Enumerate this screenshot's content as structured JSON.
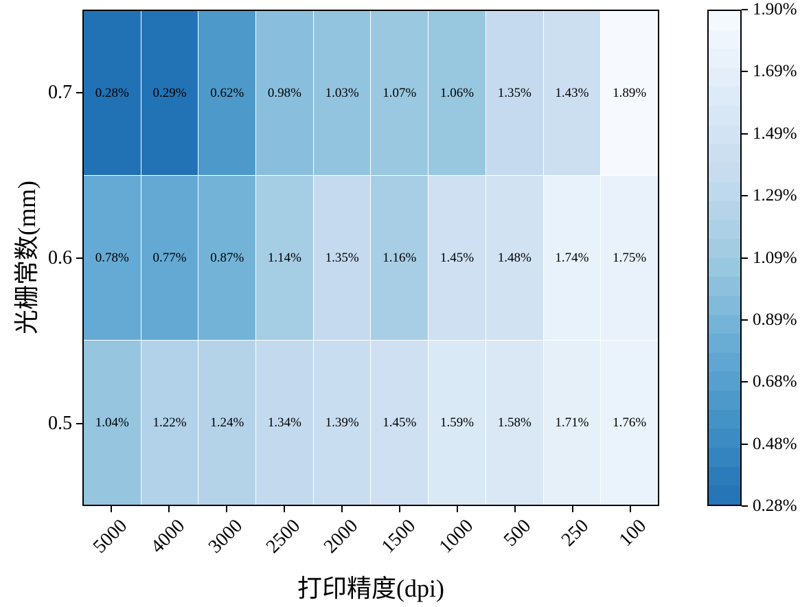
{
  "chart_data": {
    "type": "heatmap",
    "title": "",
    "xlabel": "打印精度(dpi)",
    "ylabel": "光栅常数(mm)",
    "x_categories": [
      "5000",
      "4000",
      "3000",
      "2500",
      "2000",
      "1500",
      "1000",
      "500",
      "250",
      "100"
    ],
    "y_categories": [
      "0.7",
      "0.6",
      "0.5"
    ],
    "values": [
      [
        0.28,
        0.29,
        0.62,
        0.98,
        1.03,
        1.07,
        1.06,
        1.35,
        1.43,
        1.89
      ],
      [
        0.78,
        0.77,
        0.87,
        1.14,
        1.35,
        1.16,
        1.45,
        1.48,
        1.74,
        1.75
      ],
      [
        1.04,
        1.22,
        1.24,
        1.34,
        1.39,
        1.45,
        1.59,
        1.58,
        1.71,
        1.76
      ]
    ],
    "cell_labels": [
      [
        "0.28%",
        "0.29%",
        "0.62%",
        "0.98%",
        "1.03%",
        "1.07%",
        "1.06%",
        "1.35%",
        "1.43%",
        "1.89%"
      ],
      [
        "0.78%",
        "0.77%",
        "0.87%",
        "1.14%",
        "1.35%",
        "1.16%",
        "1.45%",
        "1.48%",
        "1.74%",
        "1.75%"
      ],
      [
        "1.04%",
        "1.22%",
        "1.24%",
        "1.34%",
        "1.39%",
        "1.45%",
        "1.59%",
        "1.58%",
        "1.71%",
        "1.76%"
      ]
    ],
    "vmin": 0.28,
    "vmax": 1.9,
    "colormap": "Blues_r",
    "colorbar_ticks": [
      "1.90%",
      "1.69%",
      "1.49%",
      "1.29%",
      "1.09%",
      "0.89%",
      "0.68%",
      "0.48%",
      "0.28%"
    ],
    "colors": {
      "low_value_dark": "#2171b5",
      "high_value_light": "#f7fbff",
      "gridline": "#ffffff",
      "frame": "#000000"
    },
    "layout": {
      "grid": "white-cell-separators",
      "legend_position": "right-colorbar",
      "x_tick_rotation": 45
    }
  }
}
